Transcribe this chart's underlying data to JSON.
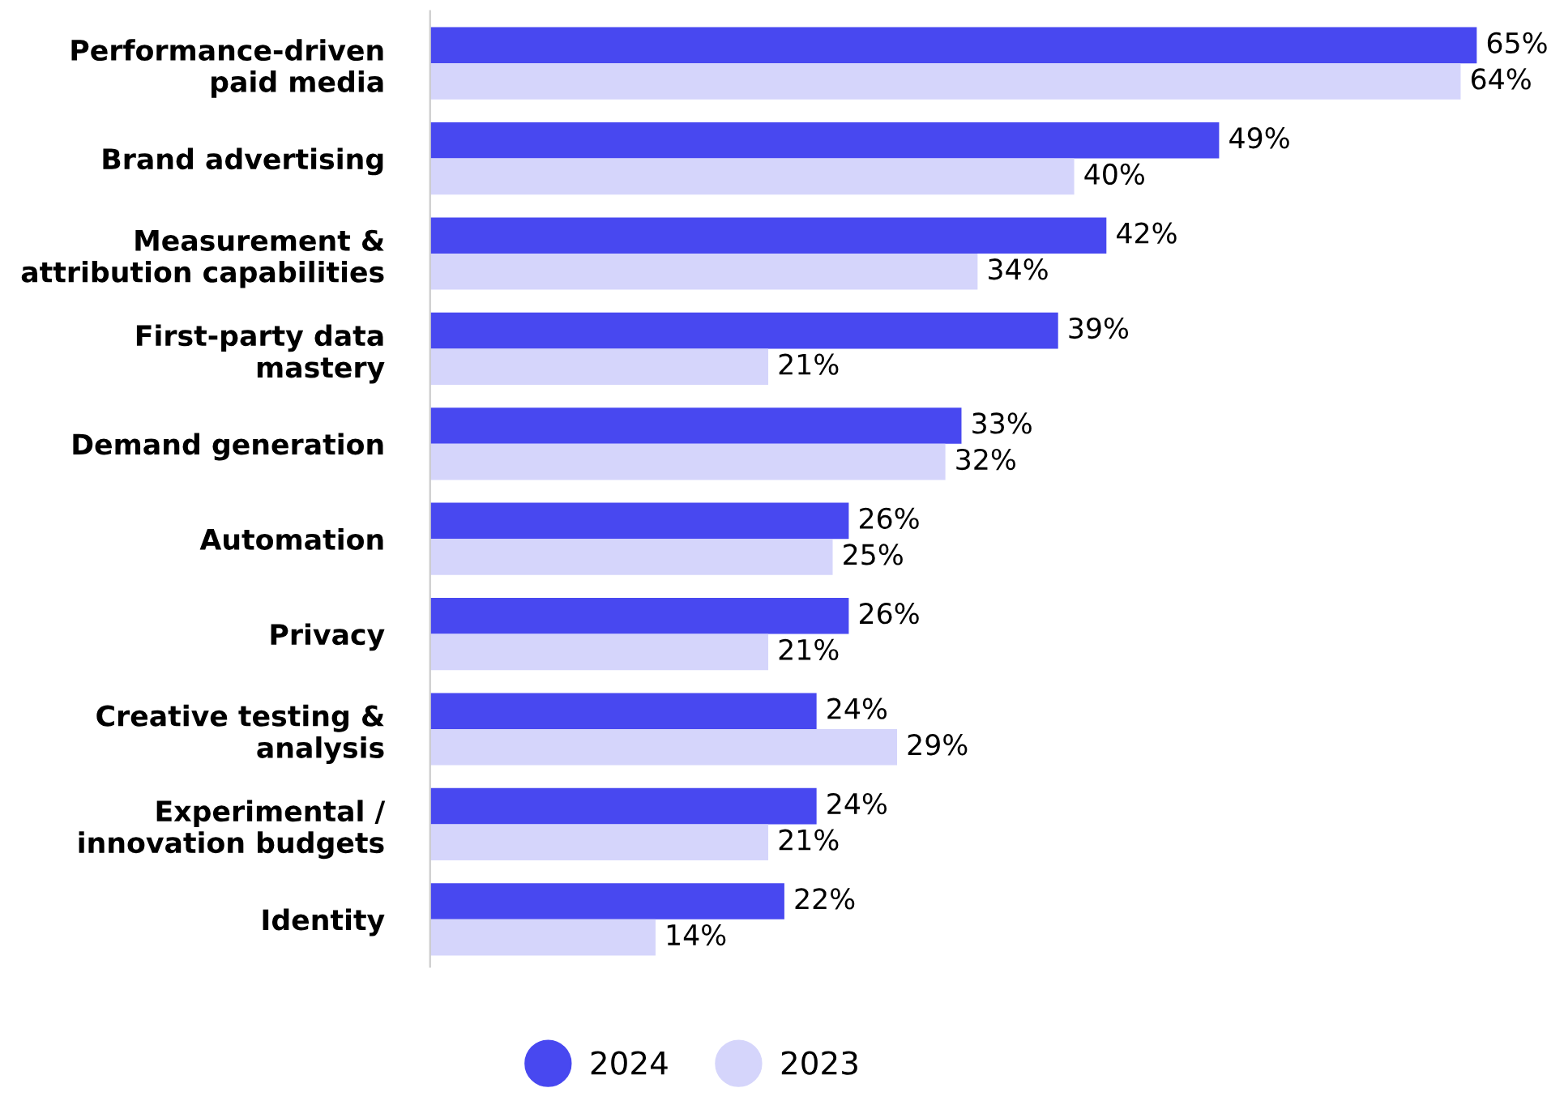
{
  "chart_data": {
    "type": "bar",
    "orientation": "horizontal",
    "categories": [
      "Performance-driven\npaid media",
      "Brand advertising",
      "Measurement &\nattribution capabilities",
      "First-party data\nmastery",
      "Demand generation",
      "Automation",
      "Privacy",
      "Creative testing &\nanalysis",
      "Experimental /\ninnovation budgets",
      "Identity"
    ],
    "series": [
      {
        "name": "2024",
        "color": "#4848f0",
        "values": [
          65,
          49,
          42,
          39,
          33,
          26,
          26,
          24,
          24,
          22
        ],
        "value_labels": [
          "65%",
          "49%",
          "42%",
          "39%",
          "33%",
          "26%",
          "26%",
          "24%",
          "24%",
          "22%"
        ]
      },
      {
        "name": "2023",
        "color": "#d5d5fb",
        "values": [
          64,
          40,
          34,
          21,
          32,
          25,
          21,
          29,
          21,
          14
        ],
        "value_labels": [
          "64%",
          "40%",
          "34%",
          "21%",
          "32%",
          "25%",
          "21%",
          "29%",
          "21%",
          "14%"
        ]
      }
    ],
    "grid": false,
    "legend": "bottom"
  }
}
